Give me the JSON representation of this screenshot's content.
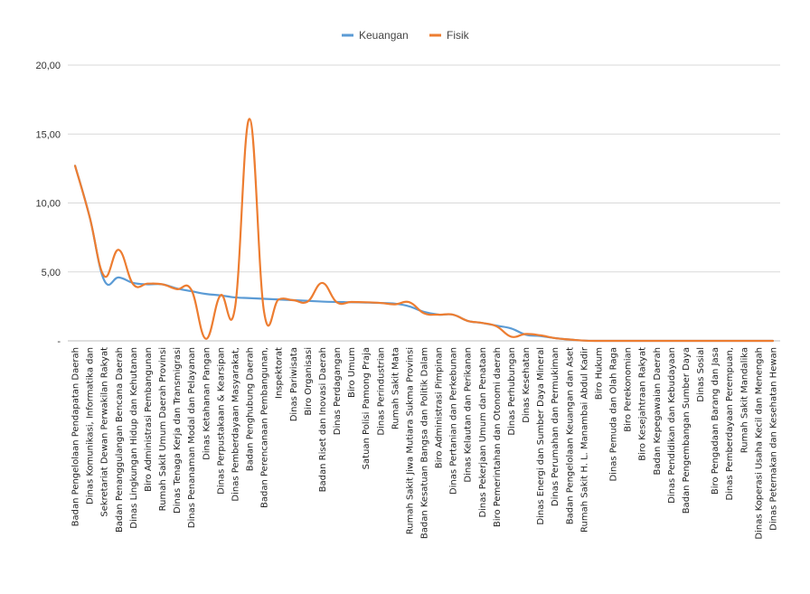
{
  "chart_data": {
    "type": "line",
    "title": "",
    "xlabel": "",
    "ylabel": "",
    "ylim": [
      0,
      20
    ],
    "yticks": [
      0,
      5,
      10,
      15,
      20
    ],
    "ytick_labels": [
      "-",
      "5,00",
      "10,00",
      "15,00",
      "20,00"
    ],
    "grid": true,
    "legend_position": "top-center",
    "categories": [
      "Badan Pengelolaan Pendapatan Daerah",
      "Dinas Komunikasi, Informatika dan",
      "Sekretariat Dewan Perwakilan Rakyat",
      "Badan Penanggulangan Bencana Daerah",
      "Dinas Lingkungan Hidup dan Kehutanan",
      "Biro Administrasi Pembangunan",
      "Rumah Sakit Umum Daerah Provinsi",
      "Dinas Tenaga Kerja dan Transmigrasi",
      "Dinas Penanaman Modal dan Pelayanan",
      "Dinas Ketahanan Pangan",
      "Dinas Perpustakaan & Kearsipan",
      "Dinas Pemberdayaan Masyarakat,",
      "Badan Penghubung Daerah",
      "Badan Perencanaan Pembangunan,",
      "Inspektorat",
      "Dinas Pariwisata",
      "Biro Organisasi",
      "Badan Riset dan Inovasi Daerah",
      "Dinas Perdagangan",
      "Biro Umum",
      "Satuan Polisi Pamong Praja",
      "Dinas Perindustrian",
      "Rumah Sakit Mata",
      "Rumah Sakit Jiwa Mutiara Sukma Provinsi",
      "Badan Kesatuan Bangsa dan Politik Dalam",
      "Biro Administrasi Pimpinan",
      "Dinas Pertanian dan Perkebunan",
      "Dinas Kelautan dan Perikanan",
      "Dinas Pekerjaan Umum dan Penataan",
      "Biro Pemerintahan dan Otonomi daerah",
      "Dinas Perhubungan",
      "Dinas Kesehatan",
      "Dinas Energi dan Sumber Daya Mineral",
      "Dinas Perumahan dan Permukiman",
      "Badan Pengelolaan Keuangan dan Aset",
      "Rumah Sakit H. L. Manambai Abdul Kadir",
      "Biro Hukum",
      "Dinas Pemuda dan Olah Raga",
      "Biro Perekonomian",
      "Biro Kesejahtraan Rakyat",
      "Badan Kepegawaian Daerah",
      "Dinas Pendidikan dan Kebudayaan",
      "Badan Pengembangan Sumber Daya",
      "Dinas Sosial",
      "Biro Pengadaan Barang dan Jasa",
      "Dinas Pemberdayaan Perempuan,",
      "Rumah Sakit Mandalika",
      "Dinas Koperasi Usaha Kecil dan Menengah",
      "Dinas Peternakan dan Kesehatan Hewan"
    ],
    "series": [
      {
        "name": "Keuangan",
        "color": "#5B9BD5",
        "values": [
          12.7,
          9.0,
          4.4,
          4.6,
          4.2,
          4.1,
          4.1,
          3.8,
          3.6,
          3.4,
          3.3,
          3.15,
          3.1,
          3.05,
          3.0,
          2.95,
          2.9,
          2.85,
          2.82,
          2.8,
          2.78,
          2.75,
          2.7,
          2.5,
          2.1,
          1.9,
          1.9,
          1.45,
          1.3,
          1.1,
          0.9,
          0.45,
          0.35,
          0.2,
          0.1,
          0.02,
          0.0,
          0.0,
          0.0,
          0.0,
          0.0,
          0.0,
          0.0,
          0.0,
          0.0,
          0.0,
          0.0,
          0.0,
          0.0
        ]
      },
      {
        "name": "Fisik",
        "color": "#ED7D31",
        "values": [
          12.7,
          9.0,
          4.7,
          6.6,
          4.1,
          4.15,
          4.1,
          3.75,
          3.7,
          0.15,
          3.3,
          2.4,
          16.1,
          2.1,
          3.0,
          2.95,
          2.85,
          4.2,
          2.8,
          2.82,
          2.8,
          2.75,
          2.65,
          2.8,
          2.0,
          1.9,
          1.9,
          1.45,
          1.3,
          1.05,
          0.3,
          0.5,
          0.4,
          0.2,
          0.1,
          0.02,
          0.0,
          0.0,
          0.0,
          0.0,
          0.0,
          0.0,
          0.0,
          0.0,
          0.0,
          0.0,
          0.0,
          0.0,
          0.0
        ]
      }
    ]
  }
}
